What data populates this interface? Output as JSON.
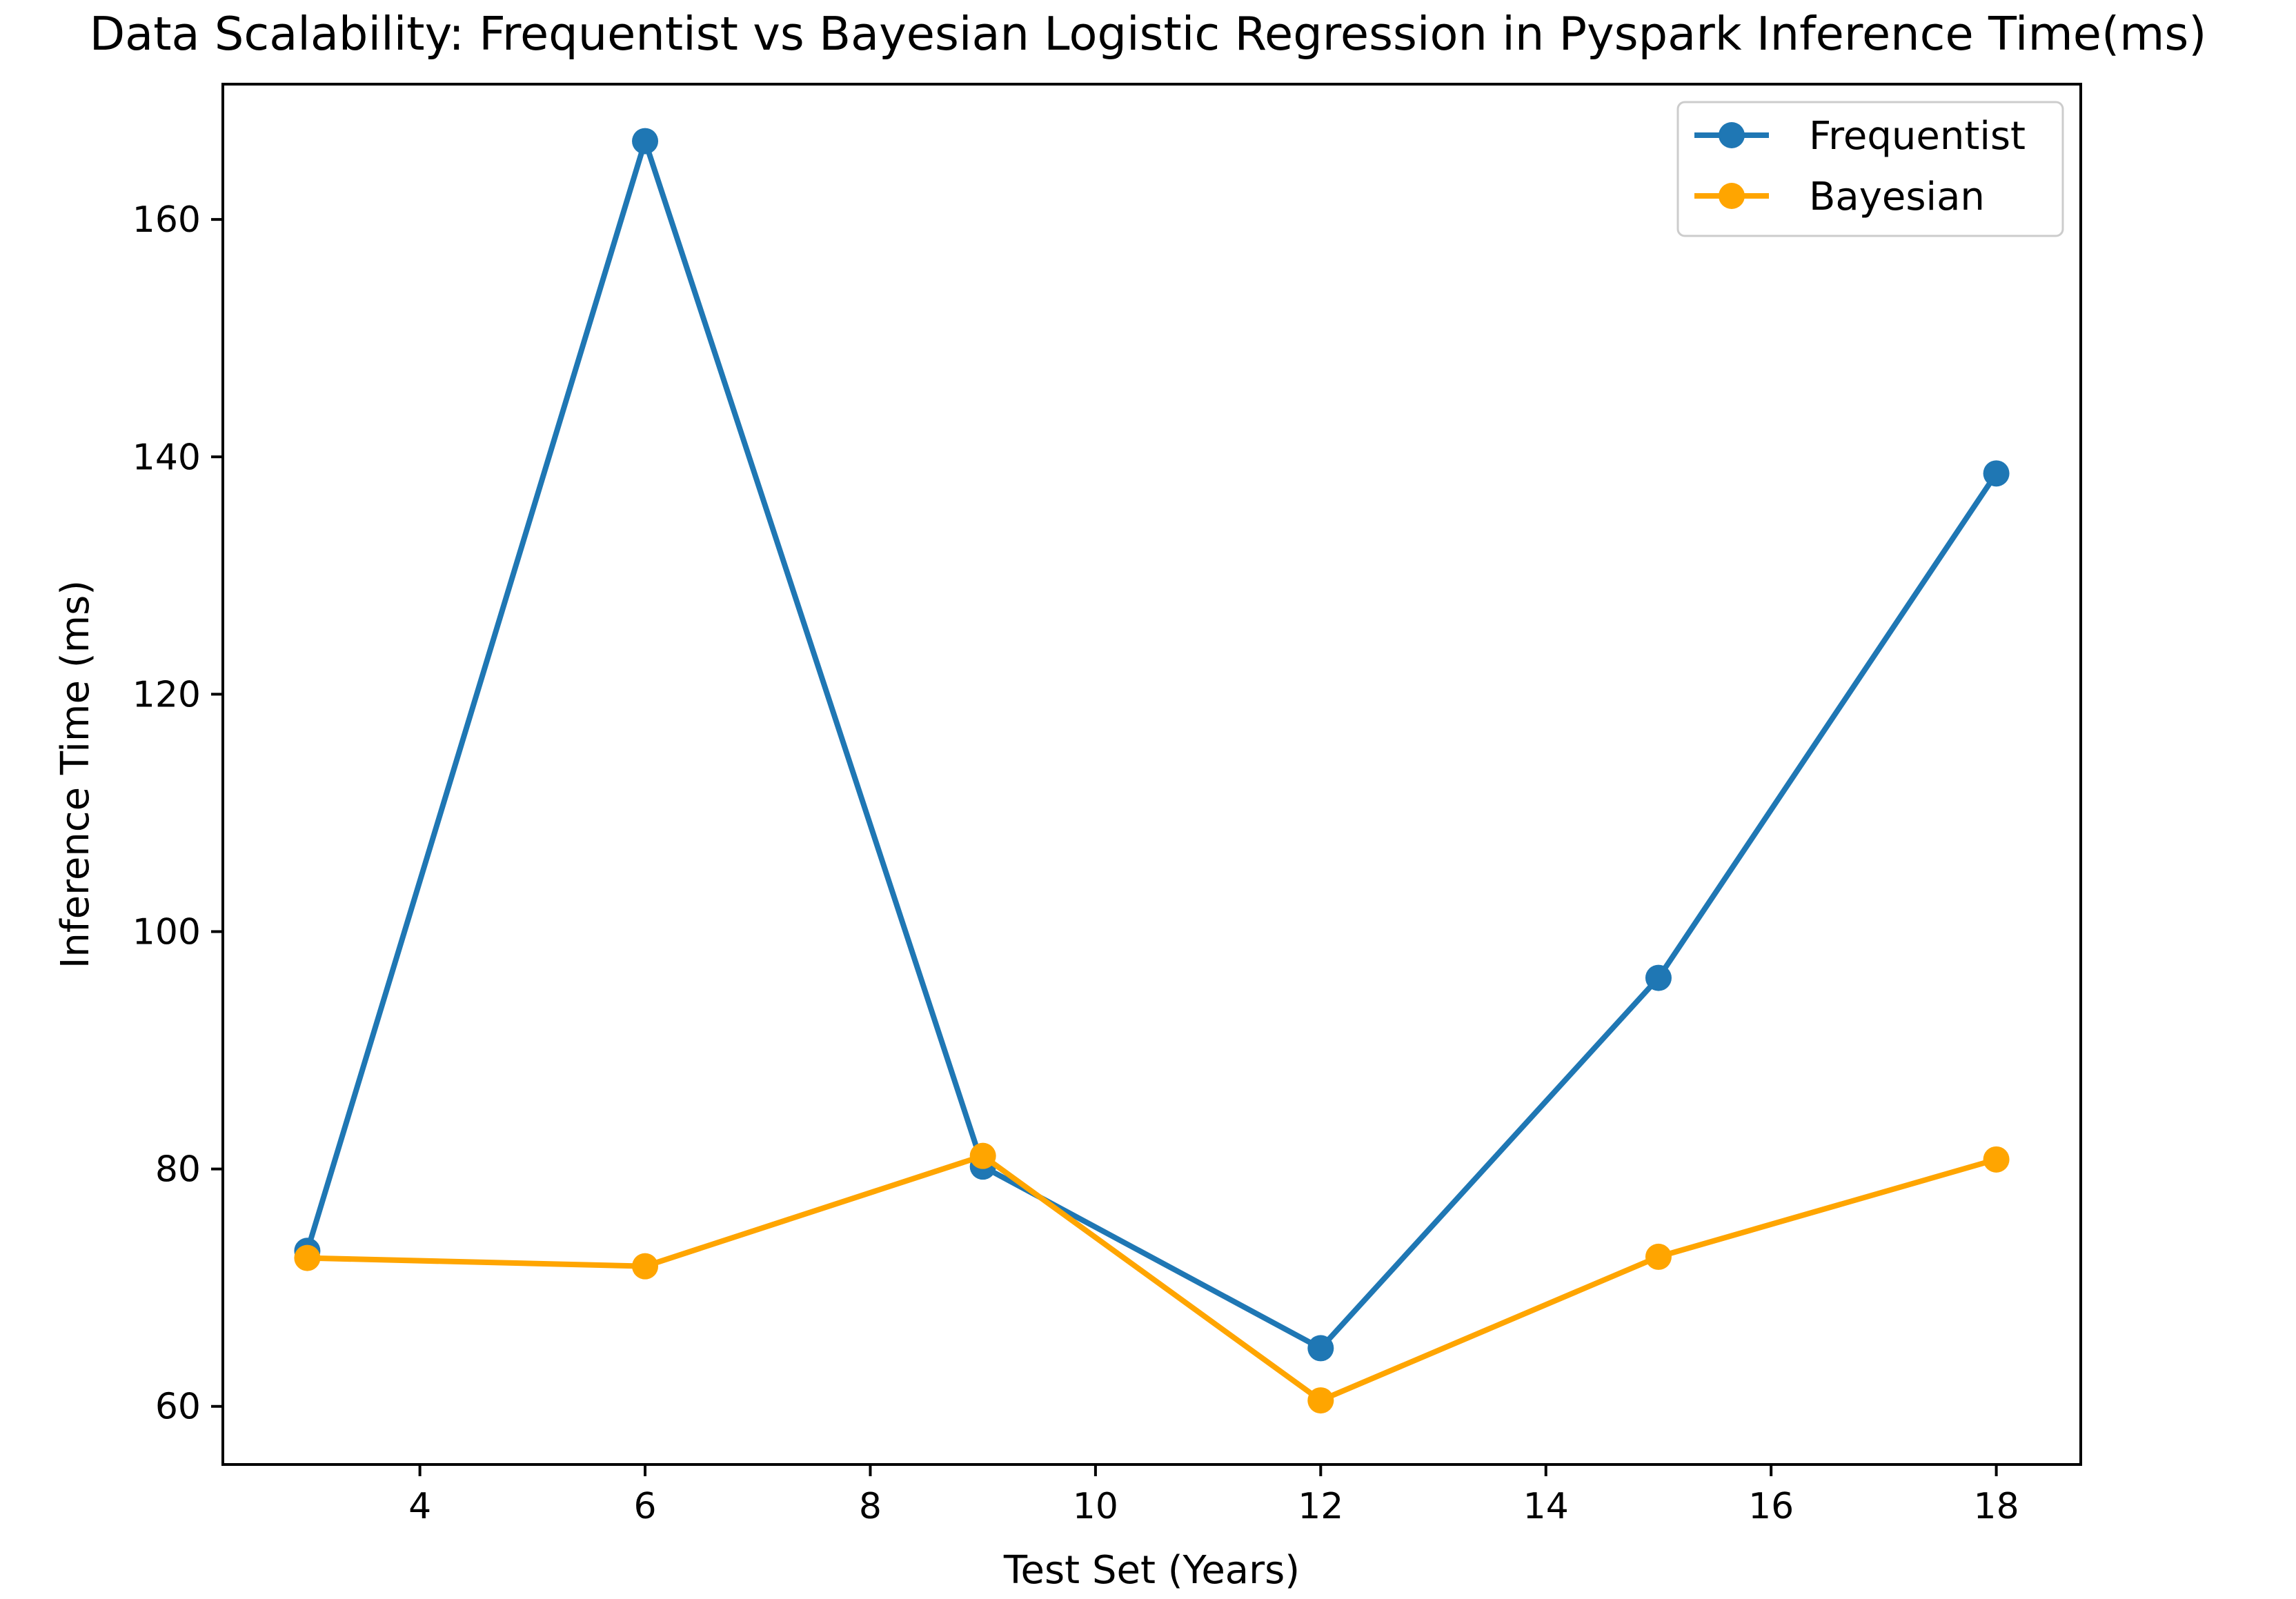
{
  "chart_data": {
    "type": "line",
    "title": "Data Scalability: Frequentist vs Bayesian Logistic Regression in Pyspark Inference Time(ms)",
    "xlabel": "Test Set (Years)",
    "ylabel": "Inference Time (ms)",
    "x": [
      3,
      6,
      9,
      12,
      15,
      18
    ],
    "xticks": [
      4,
      6,
      8,
      10,
      12,
      14,
      16,
      18
    ],
    "yticks": [
      60,
      80,
      100,
      120,
      140,
      160
    ],
    "xlim": [
      2.25,
      18.75
    ],
    "ylim": [
      55.1,
      171.4
    ],
    "grid": false,
    "legend_position": "top-right",
    "series": [
      {
        "name": "Frequentist",
        "color": "#1f77b4",
        "values": [
          73.1,
          166.6,
          80.2,
          64.9,
          96.1,
          138.6
        ]
      },
      {
        "name": "Bayesian",
        "color": "#ffa500",
        "values": [
          72.5,
          71.8,
          81.1,
          60.5,
          72.6,
          80.8
        ]
      }
    ]
  }
}
